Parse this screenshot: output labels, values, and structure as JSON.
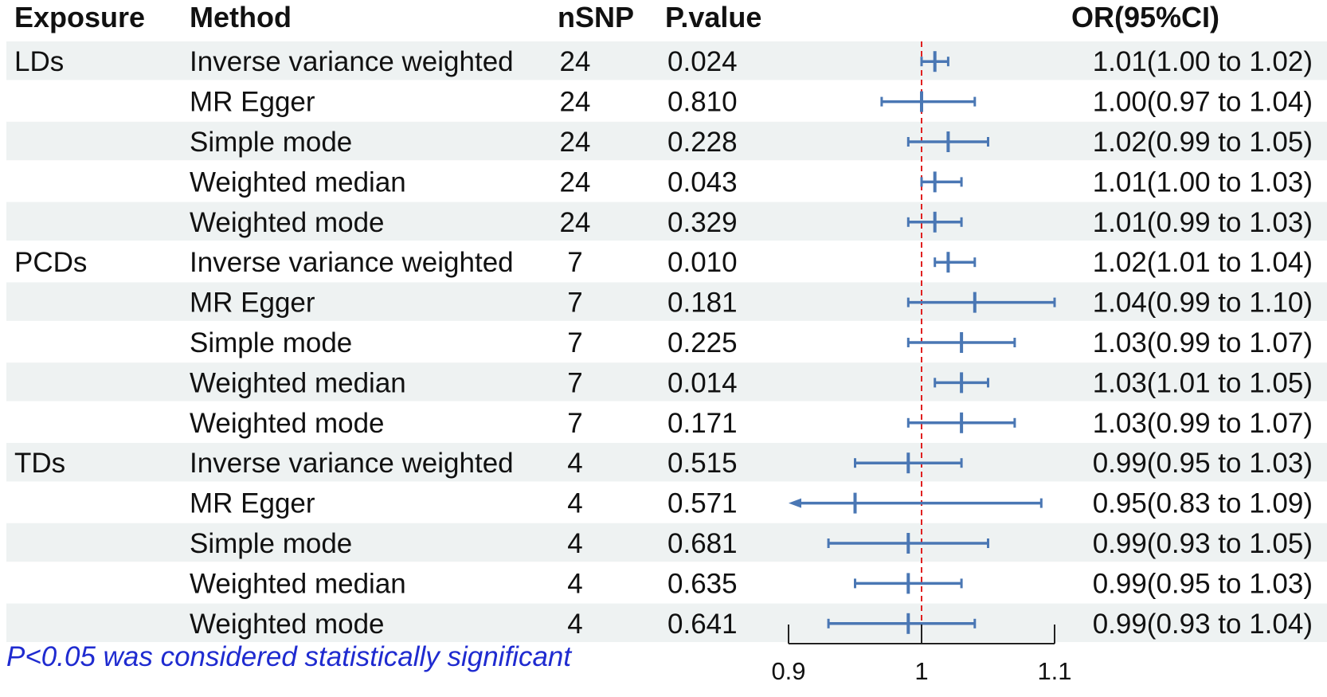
{
  "chart_data": {
    "type": "forest",
    "columns": {
      "exposure": "Exposure",
      "method": "Method",
      "nsnp": "nSNP",
      "pvalue": "P.value",
      "or_ci": "OR(95%CI)"
    },
    "rows": [
      {
        "exposure": "LDs",
        "method": "Inverse variance weighted",
        "nsnp": "24",
        "pvalue": "0.024",
        "or": 1.01,
        "lo": 1.0,
        "hi": 1.02,
        "label": "1.01(1.00 to 1.02)"
      },
      {
        "exposure": "",
        "method": "MR Egger",
        "nsnp": "24",
        "pvalue": "0.810",
        "or": 1.0,
        "lo": 0.97,
        "hi": 1.04,
        "label": "1.00(0.97 to 1.04)"
      },
      {
        "exposure": "",
        "method": "Simple mode",
        "nsnp": "24",
        "pvalue": "0.228",
        "or": 1.02,
        "lo": 0.99,
        "hi": 1.05,
        "label": "1.02(0.99 to 1.05)"
      },
      {
        "exposure": "",
        "method": "Weighted median",
        "nsnp": "24",
        "pvalue": "0.043",
        "or": 1.01,
        "lo": 1.0,
        "hi": 1.03,
        "label": "1.01(1.00 to 1.03)"
      },
      {
        "exposure": "",
        "method": "Weighted mode",
        "nsnp": "24",
        "pvalue": "0.329",
        "or": 1.01,
        "lo": 0.99,
        "hi": 1.03,
        "label": "1.01(0.99 to 1.03)"
      },
      {
        "exposure": "PCDs",
        "method": "Inverse variance weighted",
        "nsnp": "7",
        "pvalue": "0.010",
        "or": 1.02,
        "lo": 1.01,
        "hi": 1.04,
        "label": "1.02(1.01 to 1.04)"
      },
      {
        "exposure": "",
        "method": "MR Egger",
        "nsnp": "7",
        "pvalue": "0.181",
        "or": 1.04,
        "lo": 0.99,
        "hi": 1.1,
        "label": "1.04(0.99 to 1.10)"
      },
      {
        "exposure": "",
        "method": "Simple mode",
        "nsnp": "7",
        "pvalue": "0.225",
        "or": 1.03,
        "lo": 0.99,
        "hi": 1.07,
        "label": "1.03(0.99 to 1.07)"
      },
      {
        "exposure": "",
        "method": "Weighted median",
        "nsnp": "7",
        "pvalue": "0.014",
        "or": 1.03,
        "lo": 1.01,
        "hi": 1.05,
        "label": "1.03(1.01 to 1.05)"
      },
      {
        "exposure": "",
        "method": "Weighted mode",
        "nsnp": "7",
        "pvalue": "0.171",
        "or": 1.03,
        "lo": 0.99,
        "hi": 1.07,
        "label": "1.03(0.99 to 1.07)"
      },
      {
        "exposure": "TDs",
        "method": "Inverse variance weighted",
        "nsnp": "4",
        "pvalue": "0.515",
        "or": 0.99,
        "lo": 0.95,
        "hi": 1.03,
        "label": "0.99(0.95 to 1.03)"
      },
      {
        "exposure": "",
        "method": "MR Egger",
        "nsnp": "4",
        "pvalue": "0.571",
        "or": 0.95,
        "lo": 0.83,
        "hi": 1.09,
        "label": "0.95(0.83 to 1.09)"
      },
      {
        "exposure": "",
        "method": "Simple mode",
        "nsnp": "4",
        "pvalue": "0.681",
        "or": 0.99,
        "lo": 0.93,
        "hi": 1.05,
        "label": "0.99(0.93 to 1.05)"
      },
      {
        "exposure": "",
        "method": "Weighted median",
        "nsnp": "4",
        "pvalue": "0.635",
        "or": 0.99,
        "lo": 0.95,
        "hi": 1.03,
        "label": "0.99(0.95 to 1.03)"
      },
      {
        "exposure": "",
        "method": "Weighted mode",
        "nsnp": "4",
        "pvalue": "0.641",
        "or": 0.99,
        "lo": 0.93,
        "hi": 1.04,
        "label": "0.99(0.93 to 1.04)"
      }
    ],
    "xlim": [
      0.9,
      1.1
    ],
    "xticks": [
      0.9,
      1,
      1.1
    ],
    "xtick_labels": [
      "0.9",
      "1",
      "1.1"
    ],
    "reference_line": 1,
    "note": "P<0.05 was considered statistically significant",
    "colors": {
      "ci": "#4a77b4",
      "reference": "#e02020",
      "stripe": "#eef2f2",
      "note": "#1f2bd0"
    }
  }
}
